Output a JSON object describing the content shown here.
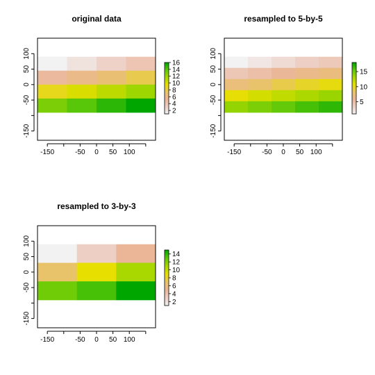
{
  "chart_data": [
    {
      "type": "heatmap",
      "title": "original data",
      "xlabel": "",
      "ylabel": "",
      "xlim": [
        -180,
        180
      ],
      "ylim": [
        -180,
        150
      ],
      "extent": {
        "xmin": -180,
        "xmax": 180,
        "ymin": -90,
        "ymax": 90
      },
      "nrow": 4,
      "ncol": 4,
      "values": [
        [
          1,
          2,
          3,
          4
        ],
        [
          5,
          6,
          7,
          8
        ],
        [
          9,
          10,
          11,
          12
        ],
        [
          13,
          14,
          15,
          16
        ]
      ],
      "x_ticks": [
        -150,
        -100,
        -50,
        0,
        50,
        100,
        150
      ],
      "x_tick_labels": [
        "-150",
        "",
        "-50",
        "0",
        "50",
        "100",
        ""
      ],
      "y_ticks": [
        -150,
        -100,
        -50,
        0,
        50,
        100
      ],
      "y_tick_labels": [
        "-150",
        "",
        "-50",
        "0",
        "50",
        "100"
      ],
      "legend": {
        "min": 1,
        "max": 16,
        "ticks": [
          2,
          4,
          6,
          8,
          10,
          12,
          14,
          16
        ],
        "tick_labels": [
          "2",
          "4",
          "6",
          "8",
          "10",
          "12",
          "14",
          "16"
        ]
      }
    },
    {
      "type": "heatmap",
      "title": "resampled to 5-by-5",
      "xlabel": "",
      "ylabel": "",
      "xlim": [
        -180,
        180
      ],
      "ylim": [
        -180,
        150
      ],
      "extent": {
        "xmin": -180,
        "xmax": 180,
        "ymin": -90,
        "ymax": 90
      },
      "nrow": 5,
      "ncol": 5,
      "values": [
        [
          1,
          1.8,
          2.6,
          3.4,
          4
        ],
        [
          4.2,
          5,
          5.8,
          6.6,
          7.2
        ],
        [
          7.4,
          8.2,
          9,
          9.8,
          10.4
        ],
        [
          10.6,
          11.4,
          12.2,
          13,
          13.6
        ],
        [
          13.8,
          14.6,
          15.4,
          16.2,
          16.8
        ]
      ],
      "x_ticks": [
        -150,
        -100,
        -50,
        0,
        50,
        100,
        150
      ],
      "x_tick_labels": [
        "-150",
        "",
        "-50",
        "0",
        "50",
        "100",
        ""
      ],
      "y_ticks": [
        -150,
        -100,
        -50,
        0,
        50,
        100
      ],
      "y_tick_labels": [
        "-150",
        "",
        "-50",
        "0",
        "50",
        "100"
      ],
      "legend": {
        "min": 1,
        "max": 18,
        "ticks": [
          5,
          10,
          15
        ],
        "tick_labels": [
          "5",
          "10",
          "15"
        ]
      }
    },
    {
      "type": "heatmap",
      "title": "resampled to 3-by-3",
      "xlabel": "",
      "ylabel": "",
      "xlim": [
        -180,
        180
      ],
      "ylim": [
        -180,
        150
      ],
      "extent": {
        "xmin": -180,
        "xmax": 180,
        "ymin": -90,
        "ymax": 90
      },
      "nrow": 3,
      "ncol": 3,
      "values": [
        [
          1,
          3,
          5
        ],
        [
          7,
          9,
          11
        ],
        [
          12.5,
          13.5,
          15
        ]
      ],
      "x_ticks": [
        -150,
        -100,
        -50,
        0,
        50,
        100,
        150
      ],
      "x_tick_labels": [
        "-150",
        "",
        "-50",
        "0",
        "50",
        "100",
        ""
      ],
      "y_ticks": [
        -150,
        -100,
        -50,
        0,
        50,
        100
      ],
      "y_tick_labels": [
        "-150",
        "",
        "-50",
        "0",
        "50",
        "100"
      ],
      "legend": {
        "min": 1,
        "max": 15,
        "ticks": [
          2,
          4,
          6,
          8,
          10,
          12,
          14
        ],
        "tick_labels": [
          "2",
          "4",
          "6",
          "8",
          "10",
          "12",
          "14"
        ]
      }
    }
  ],
  "colors": {
    "palette": [
      "#f2f2f2",
      "#eecfc4",
      "#ebb698",
      "#e9c36a",
      "#e6df00",
      "#a8d800",
      "#5ec80a",
      "#00a600"
    ]
  }
}
